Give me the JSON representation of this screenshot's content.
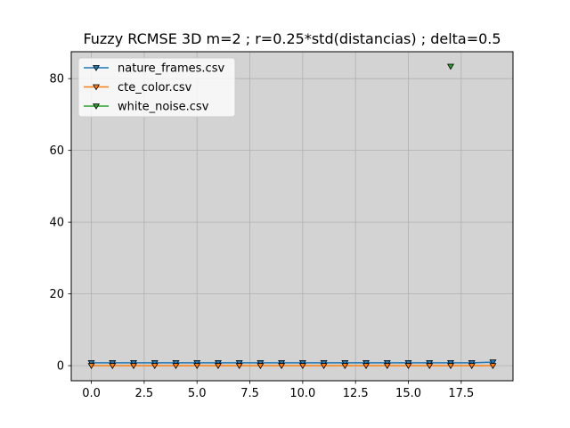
{
  "chart_data": {
    "type": "line",
    "title": "Fuzzy RCMSE 3D m=2 ; r=0.25*std(distancias) ; delta=0.5",
    "xlabel": "",
    "ylabel": "",
    "xlim": [
      -0.95,
      19.95
    ],
    "ylim": [
      -4.2,
      87.5
    ],
    "xticks": [
      0.0,
      2.5,
      5.0,
      7.5,
      10.0,
      12.5,
      15.0,
      17.5
    ],
    "xtick_labels": [
      "0.0",
      "2.5",
      "5.0",
      "7.5",
      "10.0",
      "12.5",
      "15.0",
      "17.5"
    ],
    "yticks": [
      0,
      20,
      40,
      60,
      80
    ],
    "ytick_labels": [
      "0",
      "20",
      "40",
      "60",
      "80"
    ],
    "grid": true,
    "legend_position": "upper-left",
    "background_color": "#d3d3d3",
    "series": [
      {
        "name": "nature_frames.csv",
        "color": "#1f77b4",
        "marker": "triangle-down",
        "x": [
          0,
          1,
          2,
          3,
          4,
          5,
          6,
          7,
          8,
          9,
          10,
          11,
          12,
          13,
          14,
          15,
          16,
          17,
          18,
          19
        ],
        "y": [
          0.8,
          0.8,
          0.8,
          0.8,
          0.8,
          0.8,
          0.8,
          0.8,
          0.8,
          0.8,
          0.8,
          0.8,
          0.8,
          0.8,
          0.8,
          0.8,
          0.8,
          0.8,
          0.8,
          1.0
        ]
      },
      {
        "name": "cte_color.csv",
        "color": "#ff7f0e",
        "marker": "triangle-down",
        "x": [
          0,
          1,
          2,
          3,
          4,
          5,
          6,
          7,
          8,
          9,
          10,
          11,
          12,
          13,
          14,
          15,
          16,
          17,
          18,
          19
        ],
        "y": [
          0.0,
          0.0,
          0.0,
          0.0,
          0.0,
          0.0,
          0.0,
          0.0,
          0.0,
          0.0,
          0.0,
          0.0,
          0.0,
          0.0,
          0.0,
          0.0,
          0.0,
          0.0,
          0.0,
          0.0
        ]
      },
      {
        "name": "white_noise.csv",
        "color": "#2ca02c",
        "marker": "triangle-down",
        "x": [
          17
        ],
        "y": [
          83.4
        ]
      }
    ]
  }
}
